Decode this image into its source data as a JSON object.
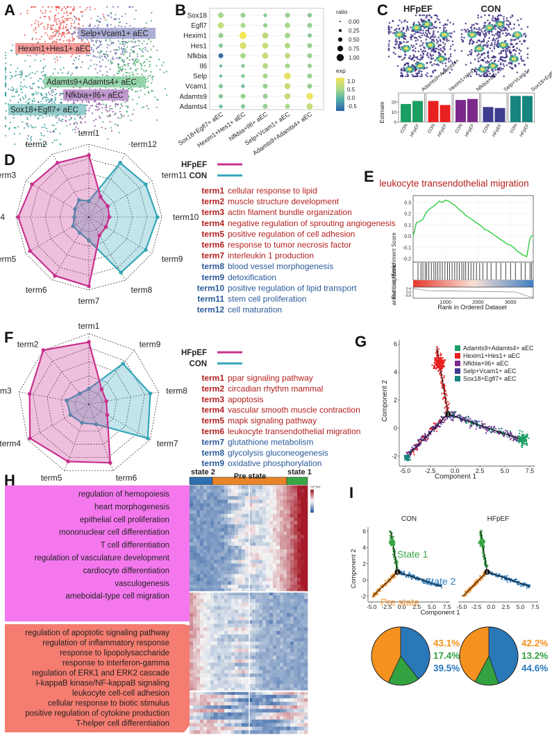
{
  "panel_labels": [
    "A",
    "B",
    "C",
    "D",
    "E",
    "F",
    "G",
    "H",
    "I"
  ],
  "panelA": {
    "clusters": [
      {
        "label": "Hexim1+Hes1+ aEC",
        "color": "#e8413b"
      },
      {
        "label": "Selp+Vcam1+ aEC",
        "color": "#5b5ba7"
      },
      {
        "label": "Adamts9+Adamts4+ aEC",
        "color": "#2e9e5a"
      },
      {
        "label": "Nfkbia+Il6+ aEC",
        "color": "#7b3a93"
      },
      {
        "label": "Sox18+Egfl7+ aEC",
        "color": "#1f8f8c"
      }
    ]
  },
  "panelB": {
    "chart_data": {
      "type": "dot",
      "genes": [
        "Sox18",
        "Egfl7",
        "Hexim1",
        "Hes1",
        "Nfkbia",
        "Il6",
        "Selp",
        "Vcam1",
        "Adamts9",
        "Adamts4"
      ],
      "clusters": [
        "Sox18+Egfl7+ aEC",
        "Hexim1+Hes1+ aEC",
        "Nfkbia+Il6+ aEC",
        "Selp+Vcam1+ aEC",
        "Adamts9+Adamts4+ aEC"
      ],
      "ratio_legend_title": "ratio",
      "ratio_ticks": [
        "0.00",
        "0.25",
        "0.50",
        "0.75",
        "1.00"
      ],
      "exp_legend_title": "exp",
      "exp_ticks": [
        "1.0",
        "0.5",
        "0.0",
        "-0.5"
      ],
      "exp": [
        [
          0.3,
          0.2,
          0.1,
          0.2,
          0.1
        ],
        [
          0.6,
          0.3,
          0.2,
          0.3,
          0.2
        ],
        [
          0.2,
          1.1,
          0.5,
          0.3,
          0.1
        ],
        [
          0.1,
          0.8,
          0.6,
          0.4,
          0.2
        ],
        [
          -0.6,
          0.3,
          0.6,
          0.5,
          0.2
        ],
        [
          0.0,
          0.1,
          0.4,
          0.3,
          0.2
        ],
        [
          0.0,
          0.1,
          0.3,
          0.9,
          0.2
        ],
        [
          0.1,
          0.0,
          0.2,
          0.6,
          0.2
        ],
        [
          0.1,
          0.2,
          0.2,
          0.6,
          1.0
        ],
        [
          0.0,
          0.1,
          0.2,
          0.3,
          0.6
        ]
      ],
      "ratio": [
        [
          0.7,
          0.6,
          0.4,
          0.6,
          0.5
        ],
        [
          0.8,
          0.6,
          0.5,
          0.7,
          0.6
        ],
        [
          0.6,
          1.0,
          0.8,
          0.7,
          0.5
        ],
        [
          0.5,
          0.9,
          0.8,
          0.7,
          0.6
        ],
        [
          0.6,
          0.7,
          0.8,
          0.7,
          0.6
        ],
        [
          0.3,
          0.4,
          0.7,
          0.6,
          0.5
        ],
        [
          0.3,
          0.4,
          0.6,
          0.9,
          0.6
        ],
        [
          0.5,
          0.4,
          0.6,
          0.8,
          0.6
        ],
        [
          0.5,
          0.6,
          0.6,
          0.8,
          0.9
        ],
        [
          0.4,
          0.5,
          0.6,
          0.6,
          0.8
        ]
      ]
    }
  },
  "panelC": {
    "groups": [
      "HFpEF",
      "CON"
    ],
    "chart_data": {
      "type": "bar",
      "facets": [
        "Adamts9+Adamts4+",
        "Hexim1+Hes1+",
        "Nfkbia+Il6+",
        "Selp+Vcam1+",
        "Sox18+Egfl7+"
      ],
      "categories": [
        "CON",
        "HFpEF"
      ],
      "colors": [
        "#1a9e63",
        "#e8201f",
        "#7b2a8c",
        "#3f3d8f",
        "#17857e"
      ],
      "values": [
        [
          18,
          21
        ],
        [
          21,
          17
        ],
        [
          22,
          23
        ],
        [
          15,
          14
        ],
        [
          26,
          26
        ]
      ],
      "ylabel": "Estimate",
      "yticks": [
        "0",
        "10",
        "20"
      ],
      "ylim": [
        0,
        29
      ]
    }
  },
  "panelD": {
    "legend": {
      "hfpef": "HFpEF",
      "con": "CON"
    },
    "chart_data": {
      "type": "radar",
      "axes": [
        "term1",
        "term12",
        "term11",
        "term10",
        "term9",
        "term8",
        "term7",
        "term6",
        "term5",
        "term4",
        "term3",
        "term2"
      ],
      "series": [
        {
          "name": "HFpEF",
          "color": "#c8308e",
          "values": [
            0.85,
            0.32,
            0.3,
            0.28,
            0.27,
            0.29,
            0.95,
            0.93,
            0.93,
            0.97,
            0.9,
            0.86
          ]
        },
        {
          "name": "CON",
          "color": "#34a6b8",
          "values": [
            0.22,
            0.86,
            0.9,
            0.94,
            0.9,
            0.88,
            0.32,
            0.25,
            0.25,
            0.2,
            0.22,
            0.27
          ]
        }
      ]
    },
    "terms": [
      {
        "id": "term1",
        "text": "cellular response to lipid",
        "group": "HFpEF"
      },
      {
        "id": "term2",
        "text": "muscle structure development",
        "group": "HFpEF"
      },
      {
        "id": "term3",
        "text": "actin filament bundle organization",
        "group": "HFpEF"
      },
      {
        "id": "term4",
        "text": "negative regulation of sprouting angiogenesis",
        "group": "HFpEF"
      },
      {
        "id": "term5",
        "text": "positive regulation of cell adhesion",
        "group": "HFpEF"
      },
      {
        "id": "term6",
        "text": "response to tumor necrosis factor",
        "group": "HFpEF"
      },
      {
        "id": "term7",
        "text": "interleukin 1 production",
        "group": "HFpEF"
      },
      {
        "id": "term8",
        "text": "blood vessel morphogenesis",
        "group": "CON"
      },
      {
        "id": "term9",
        "text": "detoxification",
        "group": "CON"
      },
      {
        "id": "term10",
        "text": "positive regulation of lipid transport",
        "group": "CON"
      },
      {
        "id": "term11",
        "text": "stem cell proliferation",
        "group": "CON"
      },
      {
        "id": "term12",
        "text": "cell maturation",
        "group": "CON"
      }
    ]
  },
  "panelE": {
    "title": "leukocyte transendothelial migration",
    "ylabel_top": "Running Enrichment Score",
    "ylabel_bottom": "anked List Metric",
    "xlabel": "Rank in Ordered Dataset",
    "chart_data": {
      "type": "line",
      "x": [
        0,
        100,
        200,
        300,
        400,
        500,
        600,
        700,
        800,
        900,
        1000,
        1100,
        1200,
        1300,
        1400,
        1500,
        1600,
        1700,
        1800,
        1900,
        2000,
        2100,
        2200,
        2300,
        2400,
        2500,
        2600,
        2700,
        2800,
        2900,
        3000,
        3100,
        3200,
        3300,
        3400,
        3500,
        3600,
        3680
      ],
      "y": [
        0.0,
        0.12,
        0.13,
        0.15,
        0.21,
        0.24,
        0.26,
        0.28,
        0.31,
        0.3,
        0.32,
        0.31,
        0.29,
        0.27,
        0.24,
        0.22,
        0.19,
        0.17,
        0.15,
        0.13,
        0.11,
        0.09,
        0.06,
        0.05,
        0.03,
        0.01,
        -0.01,
        -0.03,
        -0.05,
        -0.07,
        -0.08,
        -0.1,
        -0.13,
        -0.15,
        -0.17,
        -0.18,
        -0.02,
        0.01
      ],
      "yticks": [
        "0.3",
        "0.2",
        "0.1",
        "0.0",
        "-0.1",
        "-0.2"
      ],
      "xticks": [
        "1000",
        "2000",
        "3000"
      ],
      "ylim": [
        -0.23,
        0.36
      ],
      "xlim": [
        0,
        3700
      ],
      "hits": [
        150,
        240,
        300,
        370,
        420,
        480,
        560,
        640,
        700,
        760,
        830,
        900,
        980,
        1060,
        1120,
        1200,
        1280,
        1350,
        1420,
        1500,
        1560,
        1620,
        1700,
        1780,
        1860,
        1950,
        2050,
        2150,
        2280,
        2400,
        2560,
        2700,
        2850,
        3000,
        3150,
        3330,
        3450,
        3600,
        3650
      ],
      "metric_ticks": [
        "0.4",
        "0.0",
        "-0.8"
      ],
      "line_color": "#2ecc40"
    }
  },
  "panelF": {
    "legend": {
      "hfpef": "HFpEF",
      "con": "CON"
    },
    "chart_data": {
      "type": "radar",
      "axes": [
        "term1",
        "term9",
        "term8",
        "term7",
        "term6",
        "term5",
        "term4",
        "term3",
        "term2"
      ],
      "series": [
        {
          "name": "HFpEF",
          "color": "#c8308e",
          "values": [
            0.88,
            0.28,
            0.25,
            0.3,
            0.88,
            0.86,
            0.96,
            0.85,
            1.0
          ]
        },
        {
          "name": "CON",
          "color": "#34a6b8",
          "values": [
            0.22,
            0.75,
            0.88,
            0.96,
            0.3,
            0.28,
            0.3,
            0.32,
            0.2
          ]
        }
      ]
    },
    "terms": [
      {
        "id": "term1",
        "text": "ppar signaling pathway",
        "group": "HFpEF"
      },
      {
        "id": "term2",
        "text": "circadian rhythm mammal",
        "group": "HFpEF"
      },
      {
        "id": "term3",
        "text": "apoptosis",
        "group": "HFpEF"
      },
      {
        "id": "term4",
        "text": "vascular smooth muscle contraction",
        "group": "HFpEF"
      },
      {
        "id": "term5",
        "text": "mapk signaling pathway",
        "group": "HFpEF"
      },
      {
        "id": "term6",
        "text": "leukocyte transendothelial migration",
        "group": "HFpEF"
      },
      {
        "id": "term7",
        "text": "glutathione metabolism",
        "group": "CON"
      },
      {
        "id": "term8",
        "text": "glycolysis gluconeogenesis",
        "group": "CON"
      },
      {
        "id": "term9",
        "text": "oxidative phosphorylation",
        "group": "CON"
      }
    ]
  },
  "panelG": {
    "xlabel": "Component 1",
    "ylabel": "Component 2",
    "xticks": [
      "-5.0",
      "-2.5",
      "0.0",
      "2.5",
      "5.0",
      "7.5"
    ],
    "yticks": [
      "6",
      "4",
      "2",
      "0",
      "-2"
    ],
    "branch_label": "1",
    "legend": [
      {
        "label": "Adamts9+Adamts4+ aEC",
        "color": "#1a9e63"
      },
      {
        "label": "Hexim1+Hes1+ aEC",
        "color": "#e8201f"
      },
      {
        "label": "Nfkbia+Il6+ aEC",
        "color": "#7b2a8c"
      },
      {
        "label": "Selp+Vcam1+ aEC",
        "color": "#3f3d8f"
      },
      {
        "label": "Sox18+Egfl7+ aEC",
        "color": "#17857e"
      }
    ]
  },
  "panelH": {
    "states": [
      {
        "label": "state 2",
        "color": "#2f6fb0"
      },
      {
        "label": "Pre state",
        "color": "#e8852a"
      },
      {
        "label": "state 1",
        "color": "#3aa646"
      }
    ],
    "colorbar_title": "Cell Type",
    "group1_color": "#f477ee",
    "group2_color": "#f47c70",
    "group1": [
      "regulation of hemopoiesis",
      "heart morphogenesis",
      "epithelial cell proliferation",
      "mononuclear cell differentiation",
      "T cell differentiation",
      "regulation of vasculature development",
      "cardiocyte differentiation",
      "vasculogenesis",
      "ameboidal-type cell migration"
    ],
    "group2": [
      "regulation of apoptotic signaling pathway",
      "regulation of inflammatory response",
      "response to lipopolysaccharide",
      "response to interferon-gamma",
      "regulation of ERK1 and ERK2 cascade",
      "I-kappaB kinase/NF-kappaB signaling",
      "leukocyte cell-cell adhesion",
      "cellular response to biotic stimulus",
      "positive regulation of cytokine production",
      "T-helper cell differentiation"
    ]
  },
  "panelI": {
    "titles": [
      "CON",
      "HFpEF"
    ],
    "xlabel": "Component 1",
    "ylabel": "Component 2",
    "xticks": [
      "-5.0",
      "-2.5",
      "0.0",
      "2.5",
      "5.0",
      "7.5"
    ],
    "yticks": [
      "6",
      "4",
      "2",
      "0",
      "-2"
    ],
    "state_labels": [
      {
        "label": "State 1",
        "color": "#3aa646"
      },
      {
        "label": "State 2",
        "color": "#2f7ab8"
      },
      {
        "label": "Pre state",
        "color": "#f0922e"
      }
    ],
    "chart_data": {
      "type": "pie",
      "groups": [
        "CON",
        "HFpEF"
      ],
      "categories": [
        "Pre state",
        "State 1",
        "State 2"
      ],
      "colors": [
        "#f4921f",
        "#34a240",
        "#2a78b8"
      ],
      "values": [
        [
          43.1,
          17.4,
          39.5
        ],
        [
          42.2,
          13.2,
          44.6
        ]
      ],
      "labels": [
        [
          "43.1%",
          "17.4%",
          "39.5%"
        ],
        [
          "42.2%",
          "13.2%",
          "44.6%"
        ]
      ]
    }
  }
}
